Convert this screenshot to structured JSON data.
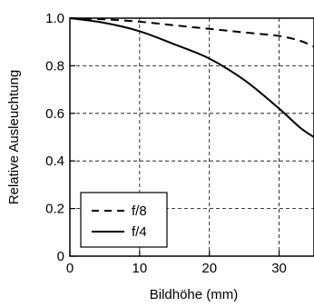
{
  "chart_data": {
    "type": "line",
    "title": "",
    "xlabel": "Bildhöhe (mm)",
    "ylabel": "Relative Ausleuchtung",
    "xlim": [
      0,
      35
    ],
    "ylim": [
      0,
      1.0
    ],
    "x_ticks": [
      0,
      10,
      20,
      30
    ],
    "y_ticks": [
      0,
      0.2,
      0.4,
      0.6,
      0.8,
      1.0
    ],
    "x_tick_labels": [
      "0",
      "10",
      "20",
      "30"
    ],
    "y_tick_labels": [
      "0",
      "0.2",
      "0.4",
      "0.6",
      "0.8",
      "1.0"
    ],
    "grid": true,
    "legend_position": "bottom-left",
    "series": [
      {
        "name": "f/8",
        "style": "dashed",
        "x": [
          0,
          5,
          10,
          15,
          20,
          25,
          30,
          33,
          35
        ],
        "y": [
          1.0,
          0.995,
          0.985,
          0.97,
          0.955,
          0.94,
          0.925,
          0.905,
          0.88
        ]
      },
      {
        "name": "f/4",
        "style": "solid",
        "x": [
          0,
          5,
          10,
          15,
          20,
          25,
          30,
          33,
          35
        ],
        "y": [
          1.0,
          0.98,
          0.945,
          0.89,
          0.83,
          0.74,
          0.62,
          0.54,
          0.5
        ]
      }
    ]
  }
}
